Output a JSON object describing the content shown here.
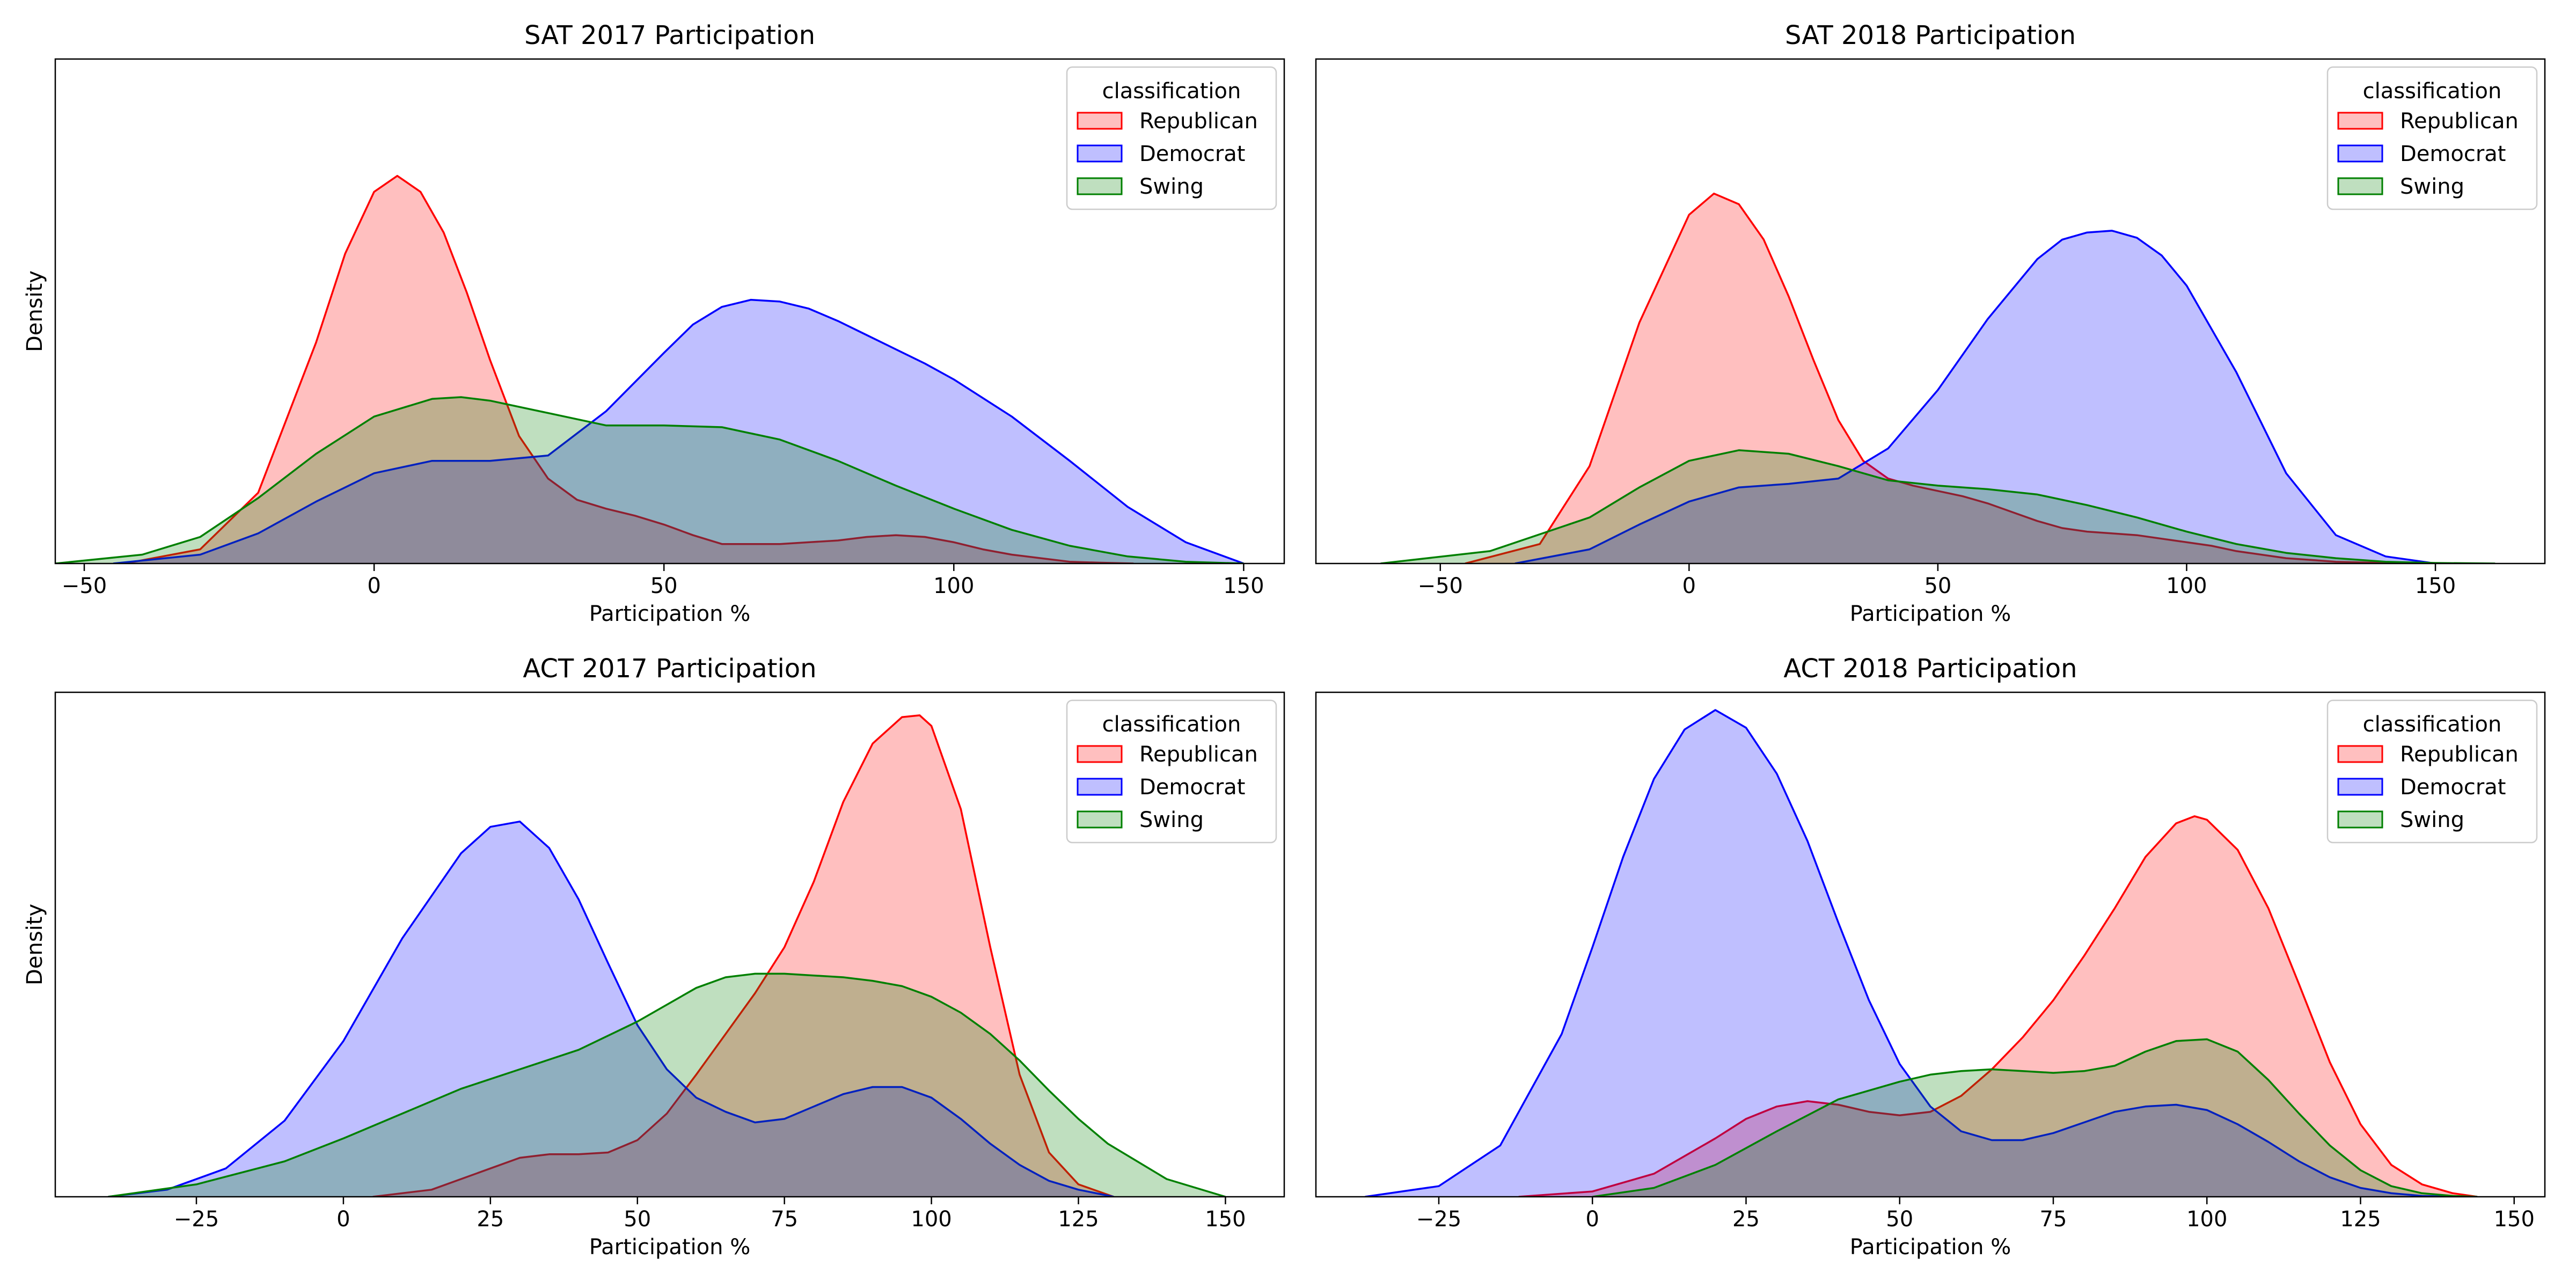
{
  "chart_data": [
    {
      "type": "area",
      "title": "SAT 2017 Participation",
      "xlabel": "Participation %",
      "ylabel": "Density",
      "xlim": [
        -55,
        157
      ],
      "ylim": [
        0,
        0.0285
      ],
      "xticks": [
        -50,
        0,
        50,
        100,
        150
      ],
      "xtick_labels": [
        "−50",
        "0",
        "50",
        "100",
        "150"
      ],
      "show_ylabel": true,
      "legend": {
        "title": "classification",
        "position": "top-right",
        "entries": [
          "Republican",
          "Democrat",
          "Swing"
        ]
      },
      "series": [
        {
          "name": "Republican",
          "color": "#ff0000",
          "x": [
            -43,
            -30,
            -20,
            -10,
            -5,
            0,
            4,
            8,
            12,
            16,
            20,
            25,
            30,
            35,
            40,
            45,
            50,
            55,
            60,
            65,
            70,
            75,
            80,
            85,
            90,
            95,
            100,
            105,
            110,
            115,
            120,
            125,
            131
          ],
          "y": [
            0.0,
            0.0008,
            0.004,
            0.0125,
            0.0175,
            0.021,
            0.0219,
            0.021,
            0.0187,
            0.0153,
            0.0115,
            0.0072,
            0.0048,
            0.0036,
            0.0031,
            0.0027,
            0.0022,
            0.0016,
            0.0011,
            0.0011,
            0.0011,
            0.0012,
            0.0013,
            0.0015,
            0.0016,
            0.0015,
            0.0012,
            0.0008,
            0.0005,
            0.0003,
            0.0001,
            5e-05,
            0.0
          ]
        },
        {
          "name": "Democrat",
          "color": "#0000ff",
          "x": [
            -45,
            -30,
            -20,
            -10,
            0,
            10,
            20,
            30,
            40,
            50,
            55,
            60,
            65,
            70,
            75,
            80,
            85,
            90,
            95,
            100,
            110,
            120,
            130,
            140,
            150
          ],
          "y": [
            0.0,
            0.0005,
            0.0017,
            0.0035,
            0.0051,
            0.0058,
            0.0058,
            0.0061,
            0.0086,
            0.0119,
            0.0135,
            0.0145,
            0.0149,
            0.0148,
            0.0144,
            0.0137,
            0.0129,
            0.0121,
            0.0113,
            0.0104,
            0.0083,
            0.0058,
            0.0032,
            0.0012,
            0.0
          ]
        },
        {
          "name": "Swing",
          "color": "#008000",
          "x": [
            -55,
            -40,
            -30,
            -20,
            -10,
            0,
            10,
            15,
            20,
            30,
            40,
            50,
            60,
            70,
            80,
            90,
            100,
            110,
            120,
            130,
            140,
            150
          ],
          "y": [
            0.0,
            0.0005,
            0.0015,
            0.0037,
            0.0062,
            0.0083,
            0.0093,
            0.0094,
            0.0092,
            0.0085,
            0.0078,
            0.0078,
            0.0077,
            0.007,
            0.0058,
            0.0044,
            0.0031,
            0.0019,
            0.001,
            0.0004,
            0.0001,
            0.0
          ]
        }
      ]
    },
    {
      "type": "area",
      "title": "SAT 2018 Participation",
      "xlabel": "Participation %",
      "ylabel": "Density",
      "xlim": [
        -75,
        172
      ],
      "ylim": [
        0,
        0.0285
      ],
      "xticks": [
        -50,
        0,
        50,
        100,
        150
      ],
      "xtick_labels": [
        "−50",
        "0",
        "50",
        "100",
        "150"
      ],
      "show_ylabel": false,
      "legend": {
        "title": "classification",
        "position": "top-right",
        "entries": [
          "Republican",
          "Democrat",
          "Swing"
        ]
      },
      "series": [
        {
          "name": "Republican",
          "color": "#ff0000",
          "x": [
            -45,
            -30,
            -20,
            -10,
            0,
            5,
            10,
            15,
            20,
            25,
            30,
            35,
            40,
            45,
            50,
            55,
            60,
            65,
            70,
            75,
            80,
            85,
            90,
            95,
            100,
            105,
            110,
            120,
            130,
            140,
            148
          ],
          "y": [
            0.0,
            0.0011,
            0.0055,
            0.0136,
            0.0197,
            0.0209,
            0.0203,
            0.0183,
            0.0151,
            0.0115,
            0.0081,
            0.0058,
            0.0048,
            0.0044,
            0.0041,
            0.0038,
            0.0034,
            0.0029,
            0.0024,
            0.002,
            0.0018,
            0.0017,
            0.0016,
            0.0014,
            0.0012,
            0.001,
            0.0007,
            0.0003,
            0.0001,
            3e-05,
            0.0
          ]
        },
        {
          "name": "Democrat",
          "color": "#0000ff",
          "x": [
            -35,
            -20,
            -10,
            0,
            10,
            20,
            30,
            40,
            50,
            60,
            70,
            75,
            80,
            85,
            90,
            95,
            100,
            110,
            120,
            130,
            140,
            150
          ],
          "y": [
            0.0,
            0.0008,
            0.0022,
            0.0035,
            0.0043,
            0.0045,
            0.0048,
            0.0065,
            0.0098,
            0.0138,
            0.0172,
            0.0183,
            0.0187,
            0.0188,
            0.0184,
            0.0174,
            0.0157,
            0.0108,
            0.0051,
            0.0016,
            0.0004,
            0.0
          ]
        },
        {
          "name": "Swing",
          "color": "#008000",
          "x": [
            -62,
            -40,
            -20,
            -10,
            0,
            10,
            20,
            30,
            40,
            50,
            60,
            70,
            80,
            90,
            100,
            110,
            120,
            130,
            140,
            150,
            162
          ],
          "y": [
            0.0,
            0.0007,
            0.0026,
            0.0043,
            0.0058,
            0.0064,
            0.0062,
            0.0055,
            0.0047,
            0.0044,
            0.0042,
            0.0039,
            0.0033,
            0.0026,
            0.0018,
            0.0011,
            0.0006,
            0.0003,
            0.0001,
            3e-05,
            0.0
          ]
        }
      ]
    },
    {
      "type": "area",
      "title": "ACT 2017 Participation",
      "xlabel": "Participation %",
      "ylabel": "Density",
      "xlim": [
        -49,
        160
      ],
      "ylim": [
        0,
        0.0285
      ],
      "xticks": [
        -25,
        0,
        25,
        50,
        75,
        100,
        125,
        150
      ],
      "xtick_labels": [
        "−25",
        "0",
        "25",
        "50",
        "75",
        "100",
        "125",
        "150"
      ],
      "show_ylabel": true,
      "legend": {
        "title": "classification",
        "position": "top-right",
        "entries": [
          "Republican",
          "Democrat",
          "Swing"
        ]
      },
      "series": [
        {
          "name": "Republican",
          "color": "#ff0000",
          "x": [
            5,
            15,
            25,
            30,
            35,
            40,
            45,
            50,
            55,
            60,
            65,
            70,
            75,
            80,
            85,
            90,
            95,
            98,
            100,
            105,
            110,
            115,
            120,
            125,
            131
          ],
          "y": [
            0.0,
            0.0004,
            0.0016,
            0.0022,
            0.0024,
            0.0024,
            0.0025,
            0.0032,
            0.0047,
            0.0069,
            0.0092,
            0.0115,
            0.0141,
            0.0178,
            0.0223,
            0.0256,
            0.0271,
            0.0272,
            0.0266,
            0.0219,
            0.0141,
            0.0069,
            0.0025,
            0.0007,
            0.0
          ]
        },
        {
          "name": "Democrat",
          "color": "#0000ff",
          "x": [
            -40,
            -30,
            -20,
            -10,
            0,
            10,
            20,
            25,
            30,
            35,
            40,
            45,
            50,
            55,
            60,
            65,
            70,
            75,
            80,
            85,
            90,
            95,
            100,
            105,
            110,
            115,
            120,
            125,
            131
          ],
          "y": [
            0.0,
            0.0004,
            0.0016,
            0.0043,
            0.0088,
            0.0146,
            0.0194,
            0.0209,
            0.0212,
            0.0197,
            0.0168,
            0.0132,
            0.0097,
            0.0072,
            0.0056,
            0.0048,
            0.0042,
            0.0044,
            0.0051,
            0.0058,
            0.0062,
            0.0062,
            0.0056,
            0.0044,
            0.003,
            0.0018,
            0.0009,
            0.0004,
            0.0
          ]
        },
        {
          "name": "Swing",
          "color": "#008000",
          "x": [
            -40,
            -25,
            -10,
            0,
            10,
            20,
            30,
            40,
            50,
            60,
            65,
            70,
            75,
            80,
            85,
            90,
            95,
            100,
            105,
            110,
            115,
            120,
            125,
            130,
            140,
            150
          ],
          "y": [
            0.0,
            0.0007,
            0.002,
            0.0033,
            0.0047,
            0.0061,
            0.0072,
            0.0083,
            0.0099,
            0.0118,
            0.0124,
            0.0126,
            0.0126,
            0.0125,
            0.0124,
            0.0122,
            0.0119,
            0.0113,
            0.0104,
            0.0092,
            0.0077,
            0.006,
            0.0044,
            0.003,
            0.001,
            0.0
          ]
        }
      ]
    },
    {
      "type": "area",
      "title": "ACT 2018 Participation",
      "xlabel": "Participation %",
      "ylabel": "Density",
      "xlim": [
        -45,
        155
      ],
      "ylim": [
        0,
        0.0285
      ],
      "xticks": [
        -25,
        0,
        25,
        50,
        75,
        100,
        125,
        150
      ],
      "xtick_labels": [
        "−25",
        "0",
        "25",
        "50",
        "75",
        "100",
        "125",
        "150"
      ],
      "show_ylabel": false,
      "legend": {
        "title": "classification",
        "position": "top-right",
        "entries": [
          "Republican",
          "Democrat",
          "Swing"
        ]
      },
      "series": [
        {
          "name": "Republican",
          "color": "#ff0000",
          "x": [
            -12,
            0,
            10,
            20,
            25,
            30,
            35,
            40,
            45,
            50,
            55,
            60,
            65,
            70,
            75,
            80,
            85,
            90,
            95,
            98,
            100,
            105,
            110,
            115,
            120,
            125,
            130,
            135,
            140,
            144
          ],
          "y": [
            0.0,
            0.0003,
            0.0013,
            0.0033,
            0.0044,
            0.0051,
            0.0054,
            0.0052,
            0.0048,
            0.0046,
            0.0048,
            0.0057,
            0.0072,
            0.009,
            0.0111,
            0.0136,
            0.0163,
            0.0192,
            0.0211,
            0.0215,
            0.0213,
            0.0196,
            0.0163,
            0.012,
            0.0076,
            0.0041,
            0.0018,
            0.0007,
            0.0002,
            0.0
          ]
        },
        {
          "name": "Democrat",
          "color": "#0000ff",
          "x": [
            -37,
            -25,
            -15,
            -5,
            0,
            5,
            10,
            15,
            20,
            25,
            30,
            35,
            40,
            45,
            50,
            55,
            60,
            65,
            70,
            75,
            80,
            85,
            90,
            95,
            100,
            105,
            110,
            115,
            120,
            125,
            130,
            135,
            140,
            144
          ],
          "y": [
            0.0,
            0.0006,
            0.0029,
            0.0092,
            0.0141,
            0.0192,
            0.0236,
            0.0264,
            0.0275,
            0.0265,
            0.0239,
            0.0201,
            0.0155,
            0.0111,
            0.0075,
            0.0051,
            0.0037,
            0.0032,
            0.0032,
            0.0036,
            0.0042,
            0.0048,
            0.0051,
            0.0052,
            0.0049,
            0.0041,
            0.0031,
            0.002,
            0.0011,
            0.0005,
            0.0002,
            5e-05,
            1e-05,
            0.0
          ]
        },
        {
          "name": "Swing",
          "color": "#008000",
          "x": [
            0,
            10,
            20,
            30,
            40,
            50,
            55,
            60,
            65,
            70,
            75,
            80,
            85,
            90,
            95,
            100,
            105,
            110,
            115,
            120,
            125,
            130,
            135,
            140,
            144
          ],
          "y": [
            0.0,
            0.0005,
            0.0018,
            0.0037,
            0.0055,
            0.0065,
            0.0069,
            0.0071,
            0.0072,
            0.0071,
            0.007,
            0.0071,
            0.0074,
            0.0082,
            0.0088,
            0.0089,
            0.0082,
            0.0066,
            0.0047,
            0.0029,
            0.0015,
            0.0006,
            0.0002,
            5e-05,
            0.0
          ]
        }
      ]
    }
  ]
}
